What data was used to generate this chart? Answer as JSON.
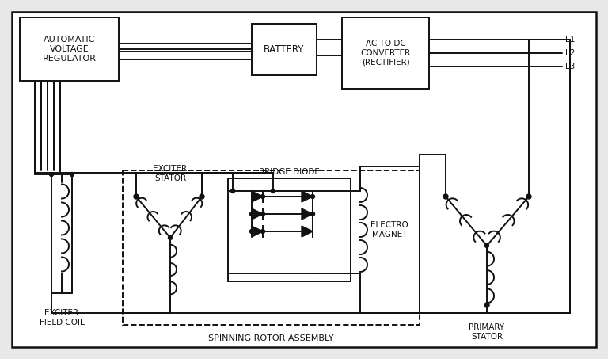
{
  "bg_color": "#e8e8e8",
  "line_color": "#111111",
  "figsize": [
    7.68,
    4.53
  ],
  "dpi": 100,
  "labels": {
    "avr": "AUTOMATIC\nVOLTAGE\nREGULATOR",
    "battery": "BATTERY",
    "rectifier": "AC TO DC\nCONVERTER\n(RECTIFIER)",
    "exciter_stator": "EXCITER\nSTATOR",
    "bridge_diode": "BRIDGE DIODE",
    "electro_magnet": "ELECTRO\nMAGNET",
    "exciter_field_coil": "EXCITER\nFIELD COIL",
    "primary_stator": "PRIMARY\nSTATOR",
    "spinning_rotor": "SPINNING ROTOR ASSEMBLY",
    "L1": "L1",
    "L2": "L2",
    "L3": "L3"
  }
}
